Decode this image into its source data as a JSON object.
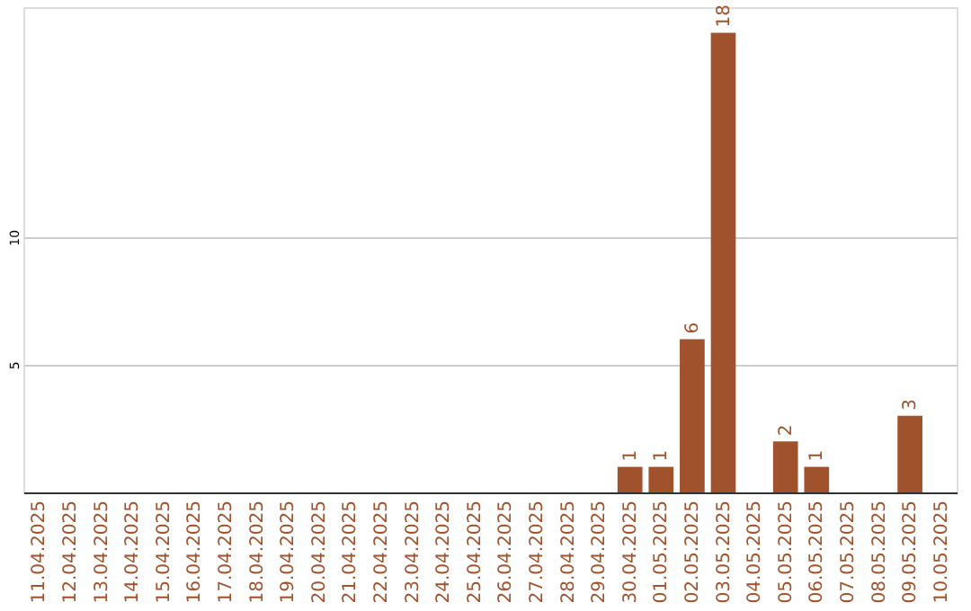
{
  "chart_data": {
    "type": "bar",
    "categories": [
      "11.04.2025",
      "12.04.2025",
      "13.04.2025",
      "14.04.2025",
      "15.04.2025",
      "16.04.2025",
      "17.04.2025",
      "18.04.2025",
      "19.04.2025",
      "20.04.2025",
      "21.04.2025",
      "22.04.2025",
      "23.04.2025",
      "24.04.2025",
      "25.04.2025",
      "26.04.2025",
      "27.04.2025",
      "28.04.2025",
      "29.04.2025",
      "30.04.2025",
      "01.05.2025",
      "02.05.2025",
      "03.05.2025",
      "04.05.2025",
      "05.05.2025",
      "06.05.2025",
      "07.05.2025",
      "08.05.2025",
      "09.05.2025",
      "10.05.2025"
    ],
    "values": [
      0,
      0,
      0,
      0,
      0,
      0,
      0,
      0,
      0,
      0,
      0,
      0,
      0,
      0,
      0,
      0,
      0,
      0,
      0,
      1,
      1,
      6,
      18,
      0,
      2,
      1,
      0,
      0,
      3,
      0
    ],
    "value_labels": [
      null,
      null,
      null,
      null,
      null,
      null,
      null,
      null,
      null,
      null,
      null,
      null,
      null,
      null,
      null,
      null,
      null,
      null,
      null,
      "1",
      "1",
      "6",
      "18",
      null,
      "2",
      "1",
      null,
      null,
      "3",
      null
    ],
    "color": "#a0522d",
    "ylim": [
      0,
      19
    ],
    "yticks": [
      5,
      10
    ],
    "grid": "y"
  }
}
